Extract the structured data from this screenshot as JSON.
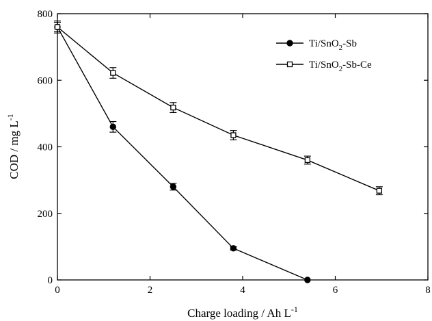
{
  "chart_data": {
    "type": "line",
    "xlabel": "Charge loading / Ah L",
    "xlabel_sup": "-1",
    "ylabel": "COD / mg L",
    "ylabel_sup": "-1",
    "xlim": [
      0,
      8
    ],
    "ylim": [
      0,
      800
    ],
    "xticks": [
      0,
      2,
      4,
      6,
      8
    ],
    "yticks": [
      0,
      200,
      400,
      600,
      800
    ],
    "grid": false,
    "legend_position": "top-right",
    "series": [
      {
        "name": "Ti/SnO2-Sb",
        "legend_parts": [
          "Ti/SnO",
          "2",
          "-Sb"
        ],
        "marker": "filled-circle",
        "x": [
          0,
          1.2,
          2.5,
          3.8,
          5.4
        ],
        "y": [
          760,
          460,
          280,
          95,
          0
        ],
        "err": [
          18,
          16,
          10,
          5,
          0
        ]
      },
      {
        "name": "Ti/SnO2-Sb-Ce",
        "legend_parts": [
          "Ti/SnO",
          "2",
          "-Sb-Ce"
        ],
        "marker": "open-square",
        "x": [
          0,
          1.2,
          2.5,
          3.8,
          5.4,
          6.95
        ],
        "y": [
          760,
          622,
          518,
          435,
          360,
          268
        ],
        "err": [
          14,
          16,
          15,
          14,
          12,
          12
        ]
      }
    ]
  }
}
